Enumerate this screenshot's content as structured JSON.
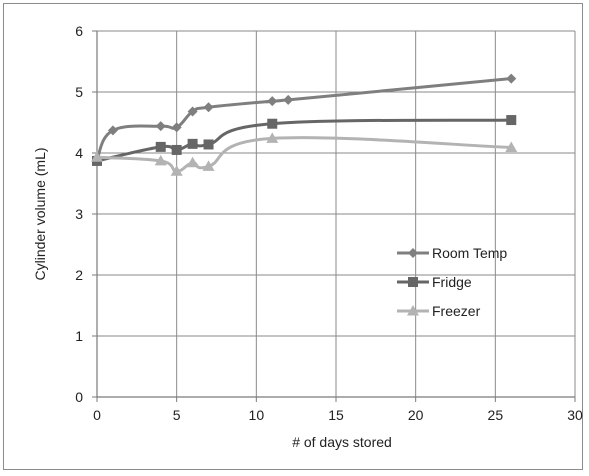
{
  "chart_data": {
    "type": "line",
    "title": "",
    "xlabel": "# of days stored",
    "ylabel": "Cylinder volume (mL)",
    "xlim": [
      0,
      30
    ],
    "ylim": [
      0,
      6
    ],
    "xticks": [
      0,
      5,
      10,
      15,
      20,
      25,
      30
    ],
    "yticks": [
      0,
      1,
      2,
      3,
      4,
      5,
      6
    ],
    "grid": true,
    "smooth": true,
    "legend_position": "right-middle",
    "series": [
      {
        "name": "Room Temp",
        "color": "#7f7f7f",
        "marker": "diamond",
        "points": [
          [
            0,
            3.9
          ],
          [
            1,
            4.37
          ],
          [
            4,
            4.44
          ],
          [
            5,
            4.42
          ],
          [
            6,
            4.68
          ],
          [
            7,
            4.75
          ],
          [
            11,
            4.85
          ],
          [
            12,
            4.87
          ],
          [
            26,
            5.22
          ]
        ]
      },
      {
        "name": "Fridge",
        "color": "#666666",
        "marker": "square",
        "points": [
          [
            0,
            3.87
          ],
          [
            4,
            4.1
          ],
          [
            5,
            4.05
          ],
          [
            6,
            4.15
          ],
          [
            7,
            4.14
          ],
          [
            11,
            4.48
          ],
          [
            26,
            4.54
          ]
        ]
      },
      {
        "name": "Freezer",
        "color": "#b3b3b3",
        "marker": "triangle",
        "points": [
          [
            0,
            3.93
          ],
          [
            4,
            3.87
          ],
          [
            5,
            3.7
          ],
          [
            6,
            3.84
          ],
          [
            7,
            3.78
          ],
          [
            11,
            4.24
          ],
          [
            26,
            4.09
          ]
        ]
      }
    ]
  }
}
